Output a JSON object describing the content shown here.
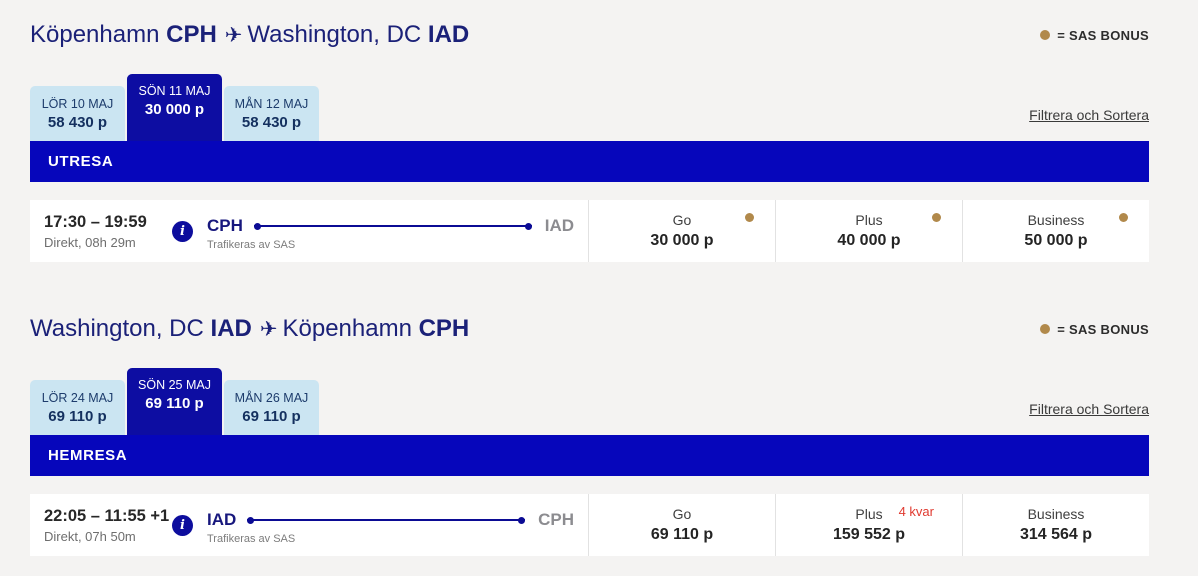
{
  "legend": "= SAS BONUS",
  "filter_link": "Filtrera och Sortera",
  "colors": {
    "brand_navy": "#1b2178",
    "selected_tab_blue": "#0d0da2",
    "band_blue": "#0606bb",
    "light_blue_tab": "#cbe5f2",
    "bonus_gold": "#b1894b",
    "warning_red": "#e03a30",
    "background": "#f4f3f2"
  },
  "sections": [
    {
      "title": {
        "origin_city": "Köpenhamn",
        "origin_code": "CPH",
        "dest_city": "Washington, DC",
        "dest_code": "IAD"
      },
      "band_label": "UTRESA",
      "tabs": [
        {
          "date": "LÖR 10 MAJ",
          "price": "58 430 p",
          "selected": false
        },
        {
          "date": "SÖN 11 MAJ",
          "price": "30 000 p",
          "selected": true
        },
        {
          "date": "MÅN 12 MAJ",
          "price": "58 430 p",
          "selected": false
        }
      ],
      "flight": {
        "times": "17:30 – 19:59",
        "duration": "Direkt, 08h 29m",
        "origin": "CPH",
        "destination": "IAD",
        "operated_by": "Trafikeras av SAS",
        "fares": [
          {
            "name": "Go",
            "price": "30 000 p",
            "bonus": true,
            "remaining": ""
          },
          {
            "name": "Plus",
            "price": "40 000 p",
            "bonus": true,
            "remaining": ""
          },
          {
            "name": "Business",
            "price": "50 000 p",
            "bonus": true,
            "remaining": ""
          }
        ]
      }
    },
    {
      "title": {
        "origin_city": "Washington, DC",
        "origin_code": "IAD",
        "dest_city": "Köpenhamn",
        "dest_code": "CPH"
      },
      "band_label": "HEMRESA",
      "tabs": [
        {
          "date": "LÖR 24 MAJ",
          "price": "69 110 p",
          "selected": false
        },
        {
          "date": "SÖN 25 MAJ",
          "price": "69 110 p",
          "selected": true
        },
        {
          "date": "MÅN 26 MAJ",
          "price": "69 110 p",
          "selected": false
        }
      ],
      "flight": {
        "times": "22:05 – 11:55 +1",
        "duration": "Direkt, 07h 50m",
        "origin": "IAD",
        "destination": "CPH",
        "operated_by": "Trafikeras av SAS",
        "fares": [
          {
            "name": "Go",
            "price": "69 110 p",
            "bonus": false,
            "remaining": ""
          },
          {
            "name": "Plus",
            "price": "159 552 p",
            "bonus": false,
            "remaining": "4 kvar"
          },
          {
            "name": "Business",
            "price": "314 564 p",
            "bonus": false,
            "remaining": ""
          }
        ]
      }
    }
  ]
}
